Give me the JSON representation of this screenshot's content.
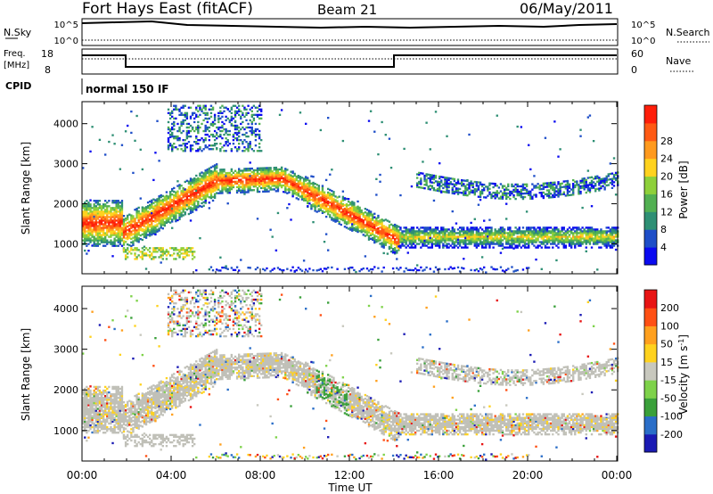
{
  "header": {
    "station": "Fort Hays East (fitACF)",
    "beam": "Beam 21",
    "date": "06/May/2011"
  },
  "panels": {
    "nsky": {
      "label": "N.Sky",
      "right_label": "N.Search",
      "left_ticks": [
        "10^5",
        "10^0"
      ],
      "right_ticks": [
        "10^5",
        "10^0"
      ]
    },
    "freq": {
      "label_line1": "Freq.",
      "label_line2": "[MHz]",
      "right_label": "Nave",
      "left_ticks": [
        "18",
        "8"
      ],
      "right_ticks": [
        "60",
        "0"
      ]
    },
    "cpid": {
      "label": "CPID",
      "value": "normal 150 IF"
    }
  },
  "chart_data": [
    {
      "type": "heatmap",
      "name": "power",
      "ylabel": "Slant Range [km]",
      "xlabel": "",
      "x_ticks": [
        "00:00",
        "04:00",
        "08:00",
        "12:00",
        "16:00",
        "20:00",
        "00:00"
      ],
      "y_ticks": [
        1000,
        2000,
        3000,
        4000
      ],
      "ylim": [
        250,
        4550
      ],
      "colorbar": {
        "label": "Power [dB]",
        "ticks": [
          "4",
          "8",
          "12",
          "16",
          "20",
          "24",
          "28"
        ],
        "colors": [
          "#0a0af0",
          "#1e4ec8",
          "#2e8f74",
          "#52b052",
          "#8ed03a",
          "#ffd21e",
          "#ff9a1e",
          "#ff5a14",
          "#ff1e0a"
        ]
      },
      "bands": [
        {
          "x": [
            0.0,
            1.8
          ],
          "y": [
            1200,
            1800
          ],
          "level": 8
        },
        {
          "x": [
            1.8,
            6.0
          ],
          "y": [
            1100,
            2500
          ],
          "level": 6
        },
        {
          "x": [
            6.0,
            10.0
          ],
          "y": [
            2400,
            2700
          ],
          "level": 7
        },
        {
          "x": [
            10.0,
            14.5
          ],
          "y": [
            900,
            2300
          ],
          "level": 6
        },
        {
          "x": [
            14.5,
            24.0
          ],
          "y": [
            1000,
            2200
          ],
          "level": 3
        }
      ]
    },
    {
      "type": "heatmap",
      "name": "velocity",
      "ylabel": "Slant Range [km]",
      "xlabel": "Time UT",
      "x_ticks": [
        "00:00",
        "04:00",
        "08:00",
        "12:00",
        "16:00",
        "20:00",
        "00:00"
      ],
      "y_ticks": [
        1000,
        2000,
        3000,
        4000
      ],
      "ylim": [
        250,
        4550
      ],
      "colorbar": {
        "label": "Velocity [m s^-1]",
        "ticks": [
          "200",
          "100",
          "50",
          "15",
          "-15",
          "-50",
          "-100",
          "-200"
        ],
        "colors": [
          "#1a1ab4",
          "#2a6ec8",
          "#3aa03a",
          "#7ed24a",
          "#c8c8be",
          "#ffd21e",
          "#ffa01e",
          "#ff5014",
          "#e81414"
        ]
      }
    }
  ],
  "colors": {
    "ground_scatter": "#c0c0b8"
  }
}
